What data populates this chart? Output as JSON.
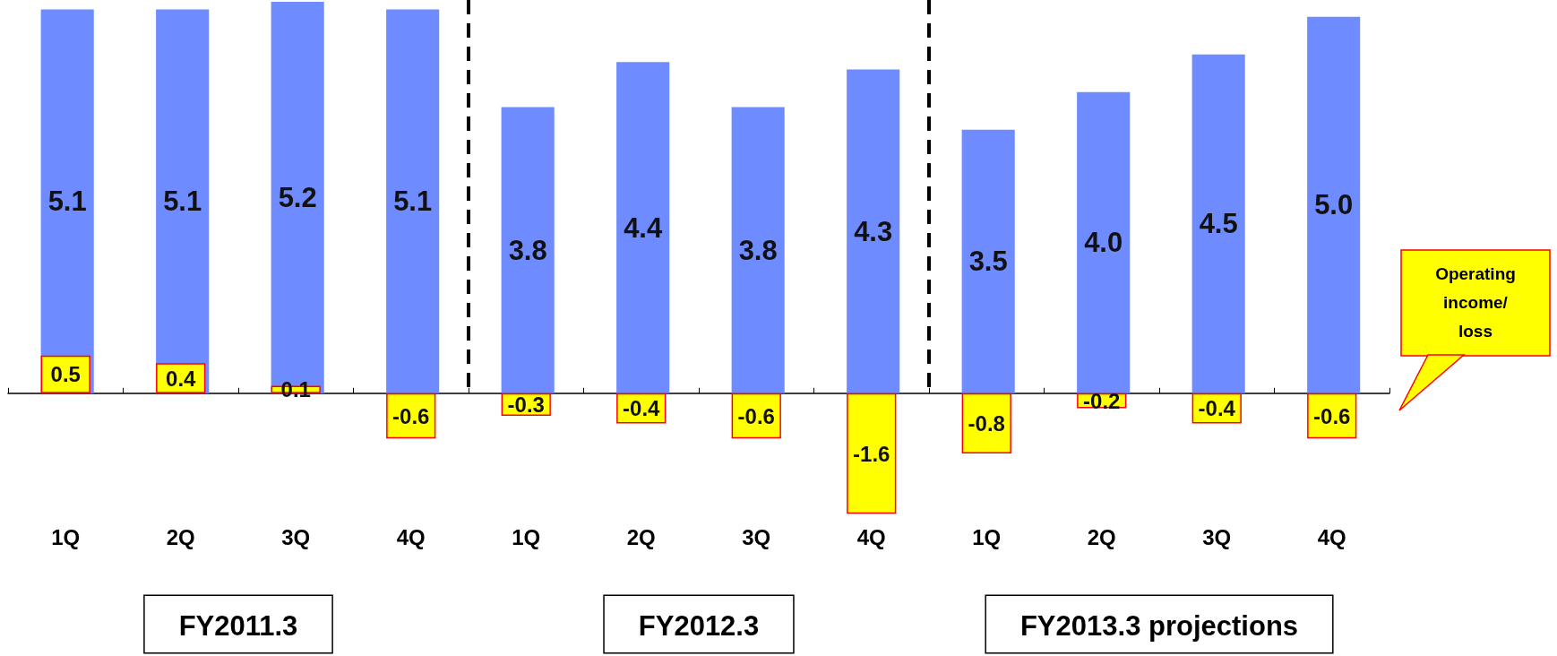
{
  "chart_data": {
    "type": "bar",
    "categories": [
      "1Q",
      "2Q",
      "3Q",
      "4Q",
      "1Q",
      "2Q",
      "3Q",
      "4Q",
      "1Q",
      "2Q",
      "3Q",
      "4Q"
    ],
    "series": [
      {
        "color": "#6e8cff",
        "values": [
          5.1,
          5.1,
          5.2,
          5.1,
          3.8,
          4.4,
          3.8,
          4.3,
          3.5,
          4.0,
          4.5,
          5.0
        ],
        "value_labels": [
          "5.1",
          "5.1",
          "5.2",
          "5.1",
          "3.8",
          "4.4",
          "3.8",
          "4.3",
          "3.5",
          "4.0",
          "4.5",
          "5.0"
        ]
      },
      {
        "name": "Operating income/ loss",
        "color": "#ffff00",
        "values": [
          0.5,
          0.4,
          0.1,
          -0.6,
          -0.3,
          -0.4,
          -0.6,
          -1.6,
          -0.8,
          -0.2,
          -0.4,
          -0.6
        ],
        "value_labels": [
          "0.5",
          "0.4",
          "0.1",
          "-0.6",
          "-0.3",
          "-0.4",
          "-0.6",
          "-1.6",
          "-0.8",
          "-0.2",
          "-0.4",
          "-0.6"
        ]
      }
    ],
    "legend": false,
    "annotations": [
      "FY2011.3",
      "FY2012.3",
      "FY2013.3 projections"
    ]
  }
}
